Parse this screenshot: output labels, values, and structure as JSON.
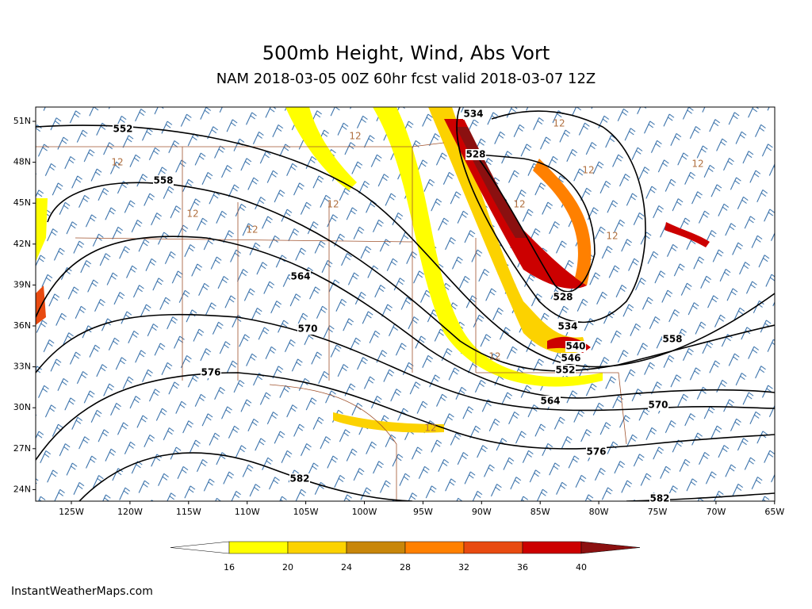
{
  "header": {
    "title": "500mb Height, Wind, Abs Vort",
    "subtitle": "NAM 2018-03-05 00Z 60hr fcst valid 2018-03-07 12Z"
  },
  "map": {
    "lat_labels": [
      "51N",
      "48N",
      "45N",
      "42N",
      "39N",
      "36N",
      "33N",
      "30N",
      "27N",
      "24N"
    ],
    "lon_labels": [
      "125W",
      "120W",
      "115W",
      "110W",
      "105W",
      "100W",
      "95W",
      "90W",
      "85W",
      "80W",
      "75W",
      "70W",
      "65W"
    ],
    "height_labels": [
      "552",
      "558",
      "564",
      "570",
      "576",
      "582",
      "534",
      "528",
      "528",
      "534",
      "540",
      "546",
      "552",
      "558",
      "564",
      "570",
      "576",
      "582"
    ],
    "vort_labels": [
      "12",
      "12",
      "12",
      "12",
      "12",
      "12",
      "12",
      "12",
      "12",
      "12",
      "12",
      "12"
    ]
  },
  "colorbar": {
    "labels": [
      16,
      20,
      24,
      28,
      32,
      36,
      40
    ],
    "colors": [
      "#ffffff",
      "#ffff00",
      "#fcd200",
      "#c8860a",
      "#ff8000",
      "#e84a10",
      "#cc0000",
      "#8b1010"
    ]
  },
  "footer": "InstantWeatherMaps.com"
}
